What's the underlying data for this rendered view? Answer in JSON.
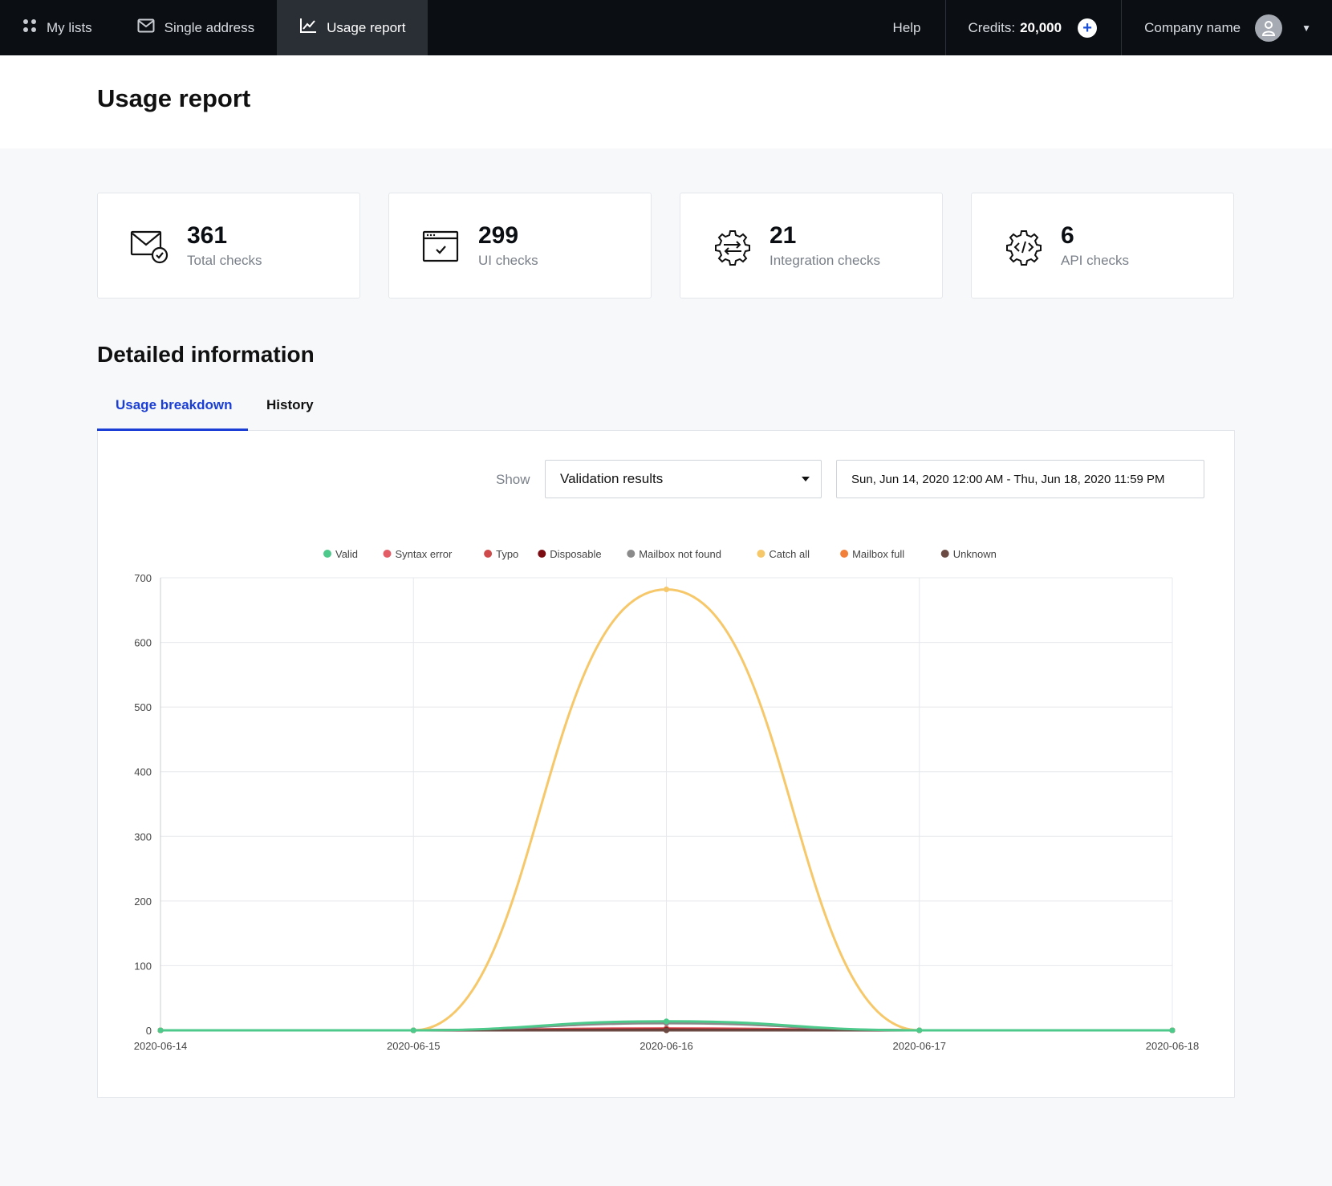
{
  "nav": {
    "my_lists": "My lists",
    "single_address": "Single address",
    "usage_report": "Usage report",
    "help": "Help",
    "credits_label": "Credits:",
    "credits_value": "20,000",
    "company": "Company name"
  },
  "page": {
    "title": "Usage report"
  },
  "stats": [
    {
      "value": "361",
      "label": "Total checks",
      "icon": "mail-check-icon"
    },
    {
      "value": "299",
      "label": "UI checks",
      "icon": "browser-check-icon"
    },
    {
      "value": "21",
      "label": "Integration checks",
      "icon": "gear-arrows-icon"
    },
    {
      "value": "6",
      "label": "API checks",
      "icon": "gear-code-icon"
    }
  ],
  "detail": {
    "title": "Detailed information"
  },
  "tabs": [
    {
      "label": "Usage breakdown"
    },
    {
      "label": "History"
    }
  ],
  "filters": {
    "show_label": "Show",
    "select_value": "Validation results",
    "date_range": "Sun, Jun 14, 2020 12:00 AM - Thu, Jun 18, 2020 11:59 PM"
  },
  "colors": {
    "accent": "#1b3fd6",
    "nav_bg": "#0b0e12"
  },
  "chart_data": {
    "type": "line",
    "x": [
      "2020-06-14",
      "2020-06-15",
      "2020-06-16",
      "2020-06-17",
      "2020-06-18"
    ],
    "ylim": [
      0,
      700
    ],
    "yticks": [
      0,
      100,
      200,
      300,
      400,
      500,
      600,
      700
    ],
    "grid": true,
    "legend": "top",
    "series": [
      {
        "name": "Valid",
        "color": "#4dc98b",
        "values": [
          0,
          0,
          14,
          0,
          0
        ]
      },
      {
        "name": "Syntax error",
        "color": "#e35d66",
        "values": [
          0,
          0,
          3,
          0,
          0
        ]
      },
      {
        "name": "Typo",
        "color": "#cf4b4b",
        "values": [
          0,
          0,
          2,
          0,
          0
        ]
      },
      {
        "name": "Disposable",
        "color": "#7a0c12",
        "values": [
          0,
          0,
          1,
          0,
          0
        ]
      },
      {
        "name": "Mailbox not found",
        "color": "#8a8a8a",
        "values": [
          0,
          0,
          11,
          0,
          0
        ]
      },
      {
        "name": "Catch all",
        "color": "#f6c86a",
        "values": [
          0,
          0,
          682,
          0,
          0
        ]
      },
      {
        "name": "Mailbox full",
        "color": "#f2803a",
        "values": [
          0,
          0,
          0,
          0,
          0
        ]
      },
      {
        "name": "Unknown",
        "color": "#6b4a44",
        "values": [
          0,
          0,
          0,
          0,
          0
        ]
      }
    ]
  }
}
